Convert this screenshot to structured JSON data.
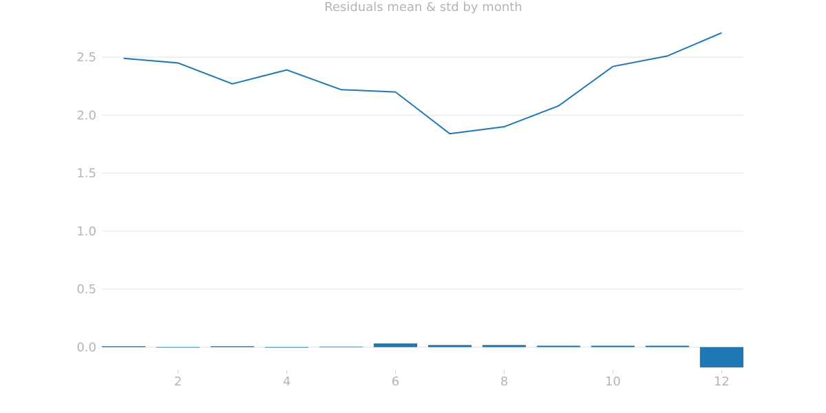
{
  "chart_data": {
    "type": "bar+line",
    "title": "Residuals mean & std by month",
    "xlabel": "",
    "ylabel": "",
    "x": [
      1,
      2,
      3,
      4,
      5,
      6,
      7,
      8,
      9,
      10,
      11,
      12
    ],
    "series": [
      {
        "type": "bar",
        "values": [
          0.008,
          0.0,
          0.008,
          -0.005,
          0.004,
          0.032,
          0.018,
          0.018,
          0.012,
          0.012,
          0.012,
          -0.175
        ]
      },
      {
        "type": "line",
        "values": [
          2.49,
          2.45,
          2.27,
          2.39,
          2.22,
          2.2,
          1.84,
          1.9,
          2.08,
          2.42,
          2.51,
          2.71
        ]
      }
    ],
    "xlim": [
      0.6,
      12.4
    ],
    "ylim": [
      -0.2,
      2.72
    ],
    "xticks": [
      2,
      4,
      6,
      8,
      10,
      12
    ],
    "yticks": [
      0.0,
      0.5,
      1.0,
      1.5,
      2.0,
      2.5
    ],
    "ytick_labels": [
      "0.0",
      "0.5",
      "1.0",
      "1.5",
      "2.0",
      "2.5"
    ],
    "grid": "y",
    "legend": "none",
    "color": "#1f77b4"
  }
}
